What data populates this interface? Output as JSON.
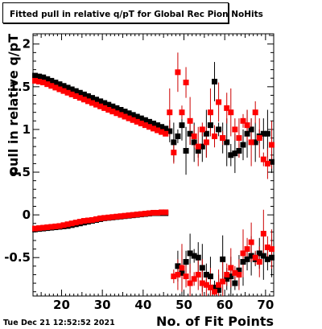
{
  "title": "Fitted pull in relative q/pT  for Global Rec Pion NoHits",
  "timestamp": "Tue Dec 21 12:52:52 2021",
  "chart_data": {
    "type": "scatter",
    "title": "Fitted pull in relative q/pT  for Global Rec Pion NoHits",
    "xlabel": "No. of Fit Points",
    "ylabel": "pull in relative q/pT",
    "xlim": [
      13,
      72
    ],
    "ylim": [
      -0.95,
      2.12
    ],
    "x_ticks": [
      20,
      30,
      40,
      50,
      60,
      70
    ],
    "y_ticks": [
      -0.5,
      0,
      0.5,
      1,
      1.5,
      2
    ],
    "colors": {
      "black_series": "#000000",
      "red_series": "#ff0000",
      "red_error": "#cc0000"
    },
    "series": [
      {
        "color": "#000000",
        "points": [
          [
            13.5,
            1.63
          ],
          [
            14.5,
            1.62
          ],
          [
            15.5,
            1.61
          ],
          [
            16.5,
            1.59
          ],
          [
            17.5,
            1.57
          ],
          [
            18.5,
            1.55
          ],
          [
            19.5,
            1.53
          ],
          [
            20.5,
            1.51
          ],
          [
            21.5,
            1.49
          ],
          [
            22.5,
            1.47
          ],
          [
            23.5,
            1.45
          ],
          [
            24.5,
            1.43
          ],
          [
            25.5,
            1.41
          ],
          [
            26.5,
            1.39
          ],
          [
            27.5,
            1.37
          ],
          [
            28.5,
            1.35
          ],
          [
            29.5,
            1.33
          ],
          [
            30.5,
            1.31
          ],
          [
            31.5,
            1.29
          ],
          [
            32.5,
            1.27
          ],
          [
            33.5,
            1.25
          ],
          [
            34.5,
            1.23
          ],
          [
            35.5,
            1.21
          ],
          [
            36.5,
            1.19
          ],
          [
            37.5,
            1.17
          ],
          [
            38.5,
            1.15
          ],
          [
            39.5,
            1.13
          ],
          [
            40.5,
            1.11
          ],
          [
            41.5,
            1.09
          ],
          [
            42.5,
            1.07
          ],
          [
            43.5,
            1.05
          ],
          [
            44.5,
            1.03
          ],
          [
            45.5,
            1.01
          ],
          [
            46.5,
            0.98
          ],
          [
            47.5,
            0.85
          ],
          [
            48.5,
            0.92
          ],
          [
            49.5,
            1.05
          ],
          [
            50.5,
            0.75
          ],
          [
            51.5,
            0.95
          ],
          [
            52.5,
            0.85
          ],
          [
            53.5,
            0.75
          ],
          [
            54.5,
            0.8
          ],
          [
            55.5,
            0.95
          ],
          [
            56.5,
            1.05
          ],
          [
            57.5,
            1.56
          ],
          [
            58.5,
            1.0
          ],
          [
            59.5,
            0.9
          ],
          [
            60.5,
            0.85
          ],
          [
            61.5,
            0.7
          ],
          [
            62.5,
            0.72
          ],
          [
            63.5,
            0.75
          ],
          [
            64.5,
            0.82
          ],
          [
            65.5,
            0.95
          ],
          [
            66.5,
            1.0
          ],
          [
            67.5,
            0.85
          ],
          [
            68.5,
            0.92
          ],
          [
            69.5,
            0.95
          ],
          [
            70.5,
            0.95
          ],
          [
            71.5,
            0.62
          ]
        ]
      },
      {
        "color": "#ff0000",
        "points": [
          [
            13.5,
            1.57
          ],
          [
            14.5,
            1.56
          ],
          [
            15.5,
            1.55
          ],
          [
            16.5,
            1.53
          ],
          [
            17.5,
            1.51
          ],
          [
            18.5,
            1.49
          ],
          [
            19.5,
            1.47
          ],
          [
            20.5,
            1.45
          ],
          [
            21.5,
            1.43
          ],
          [
            22.5,
            1.41
          ],
          [
            23.5,
            1.39
          ],
          [
            24.5,
            1.37
          ],
          [
            25.5,
            1.35
          ],
          [
            26.5,
            1.33
          ],
          [
            27.5,
            1.31
          ],
          [
            28.5,
            1.29
          ],
          [
            29.5,
            1.27
          ],
          [
            30.5,
            1.25
          ],
          [
            31.5,
            1.23
          ],
          [
            32.5,
            1.21
          ],
          [
            33.5,
            1.19
          ],
          [
            34.5,
            1.17
          ],
          [
            35.5,
            1.15
          ],
          [
            36.5,
            1.13
          ],
          [
            37.5,
            1.11
          ],
          [
            38.5,
            1.09
          ],
          [
            39.5,
            1.07
          ],
          [
            40.5,
            1.05
          ],
          [
            41.5,
            1.03
          ],
          [
            42.5,
            1.01
          ],
          [
            43.5,
            0.99
          ],
          [
            44.5,
            0.97
          ],
          [
            45.5,
            0.95
          ],
          [
            46.5,
            1.2
          ],
          [
            47.5,
            0.73
          ],
          [
            48.5,
            1.67
          ],
          [
            49.5,
            1.2
          ],
          [
            50.5,
            1.55
          ],
          [
            51.5,
            1.1
          ],
          [
            52.5,
            0.92
          ],
          [
            53.5,
            0.8
          ],
          [
            54.5,
            1.0
          ],
          [
            55.5,
            0.85
          ],
          [
            56.5,
            1.2
          ],
          [
            57.5,
            0.92
          ],
          [
            58.5,
            1.32
          ],
          [
            59.5,
            0.9
          ],
          [
            60.5,
            1.25
          ],
          [
            61.5,
            1.2
          ],
          [
            62.5,
            1.0
          ],
          [
            63.5,
            0.9
          ],
          [
            64.5,
            1.1
          ],
          [
            65.5,
            1.05
          ],
          [
            66.5,
            0.85
          ],
          [
            67.5,
            1.2
          ],
          [
            68.5,
            0.9
          ],
          [
            69.5,
            0.65
          ],
          [
            70.5,
            0.6
          ],
          [
            71.5,
            0.82
          ]
        ]
      },
      {
        "color": "#000000",
        "points": [
          [
            13.5,
            -0.17
          ],
          [
            14.5,
            -0.165
          ],
          [
            15.5,
            -0.16
          ],
          [
            16.5,
            -0.155
          ],
          [
            17.5,
            -0.15
          ],
          [
            18.5,
            -0.145
          ],
          [
            19.5,
            -0.14
          ],
          [
            20.5,
            -0.135
          ],
          [
            21.5,
            -0.13
          ],
          [
            22.5,
            -0.12
          ],
          [
            23.5,
            -0.11
          ],
          [
            24.5,
            -0.1
          ],
          [
            25.5,
            -0.09
          ],
          [
            26.5,
            -0.08
          ],
          [
            27.5,
            -0.07
          ],
          [
            28.5,
            -0.06
          ],
          [
            29.5,
            -0.05
          ],
          [
            30.5,
            -0.04
          ],
          [
            31.5,
            -0.035
          ],
          [
            32.5,
            -0.03
          ],
          [
            33.5,
            -0.025
          ],
          [
            34.5,
            -0.02
          ],
          [
            35.5,
            -0.015
          ],
          [
            36.5,
            -0.01
          ],
          [
            37.5,
            -0.005
          ],
          [
            38.5,
            0.0
          ],
          [
            39.5,
            0.005
          ],
          [
            40.5,
            0.01
          ],
          [
            41.5,
            0.015
          ],
          [
            42.5,
            0.02
          ],
          [
            43.5,
            0.02
          ],
          [
            44.5,
            0.02
          ],
          [
            45.5,
            0.02
          ],
          [
            48.5,
            -0.6
          ],
          [
            49.5,
            -0.68
          ],
          [
            50.5,
            -0.55
          ],
          [
            51.5,
            -0.45
          ],
          [
            52.5,
            -0.48
          ],
          [
            53.5,
            -0.5
          ],
          [
            54.5,
            -0.62
          ],
          [
            55.5,
            -0.7
          ],
          [
            56.5,
            -0.72
          ],
          [
            57.5,
            -0.85
          ],
          [
            58.5,
            -0.88
          ],
          [
            59.5,
            -0.52
          ],
          [
            60.5,
            -0.75
          ],
          [
            61.5,
            -0.72
          ],
          [
            62.5,
            -0.8
          ],
          [
            63.5,
            -0.65
          ],
          [
            64.5,
            -0.55
          ],
          [
            65.5,
            -0.52
          ],
          [
            66.5,
            -0.48
          ],
          [
            67.5,
            -0.52
          ],
          [
            68.5,
            -0.45
          ],
          [
            69.5,
            -0.48
          ],
          [
            70.5,
            -0.52
          ],
          [
            71.5,
            -0.5
          ]
        ]
      },
      {
        "color": "#ff0000",
        "points": [
          [
            13.5,
            -0.16
          ],
          [
            14.5,
            -0.155
          ],
          [
            15.5,
            -0.15
          ],
          [
            16.5,
            -0.145
          ],
          [
            17.5,
            -0.14
          ],
          [
            18.5,
            -0.135
          ],
          [
            19.5,
            -0.13
          ],
          [
            20.5,
            -0.12
          ],
          [
            21.5,
            -0.11
          ],
          [
            22.5,
            -0.1
          ],
          [
            23.5,
            -0.09
          ],
          [
            24.5,
            -0.08
          ],
          [
            25.5,
            -0.07
          ],
          [
            26.5,
            -0.065
          ],
          [
            27.5,
            -0.06
          ],
          [
            28.5,
            -0.05
          ],
          [
            29.5,
            -0.04
          ],
          [
            30.5,
            -0.035
          ],
          [
            31.5,
            -0.03
          ],
          [
            32.5,
            -0.025
          ],
          [
            33.5,
            -0.02
          ],
          [
            34.5,
            -0.015
          ],
          [
            35.5,
            -0.01
          ],
          [
            36.5,
            -0.005
          ],
          [
            37.5,
            0.0
          ],
          [
            38.5,
            0.005
          ],
          [
            39.5,
            0.01
          ],
          [
            40.5,
            0.015
          ],
          [
            41.5,
            0.02
          ],
          [
            42.5,
            0.025
          ],
          [
            43.5,
            0.025
          ],
          [
            44.5,
            0.03
          ],
          [
            45.5,
            0.03
          ],
          [
            47.5,
            -0.72
          ],
          [
            48.5,
            -0.7
          ],
          [
            49.5,
            -0.62
          ],
          [
            50.5,
            -0.72
          ],
          [
            51.5,
            -0.8
          ],
          [
            52.5,
            -0.75
          ],
          [
            53.5,
            -0.7
          ],
          [
            54.5,
            -0.8
          ],
          [
            55.5,
            -0.82
          ],
          [
            56.5,
            -0.85
          ],
          [
            57.5,
            -0.9
          ],
          [
            58.5,
            -0.82
          ],
          [
            59.5,
            -0.78
          ],
          [
            60.5,
            -0.7
          ],
          [
            61.5,
            -0.62
          ],
          [
            62.5,
            -0.68
          ],
          [
            63.5,
            -0.7
          ],
          [
            64.5,
            -0.45
          ],
          [
            65.5,
            -0.4
          ],
          [
            66.5,
            -0.32
          ],
          [
            67.5,
            -0.5
          ],
          [
            68.5,
            -0.55
          ],
          [
            69.5,
            -0.22
          ],
          [
            70.5,
            -0.38
          ],
          [
            71.5,
            -0.4
          ]
        ]
      }
    ]
  }
}
